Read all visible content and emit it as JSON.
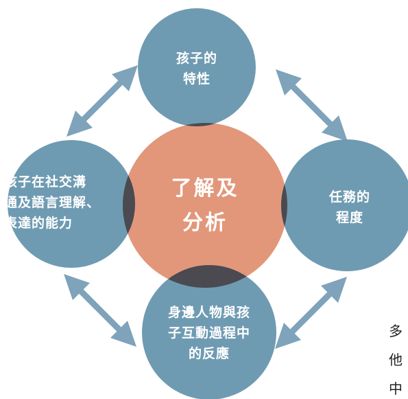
{
  "diagram": {
    "center": {
      "label": "了解及\n分析",
      "color": "#e2977a"
    },
    "top": {
      "label": "孩子的\n特性",
      "color": "#6f9bb2"
    },
    "left": {
      "label": "孩子在社交溝\n通及語言理解、\n表達的能力",
      "color": "#6f9bb2"
    },
    "right": {
      "label": "任務的\n程度",
      "color": "#6f9bb2"
    },
    "bottom": {
      "label": "身邊人物與孩\n子互動過程中\n的反應",
      "color": "#6f9bb2"
    },
    "overlap_color": "#4a4a50",
    "arrow_color": "#7ea3bb"
  },
  "side_text": {
    "line1": "多",
    "line2": "他",
    "line3": "中"
  }
}
